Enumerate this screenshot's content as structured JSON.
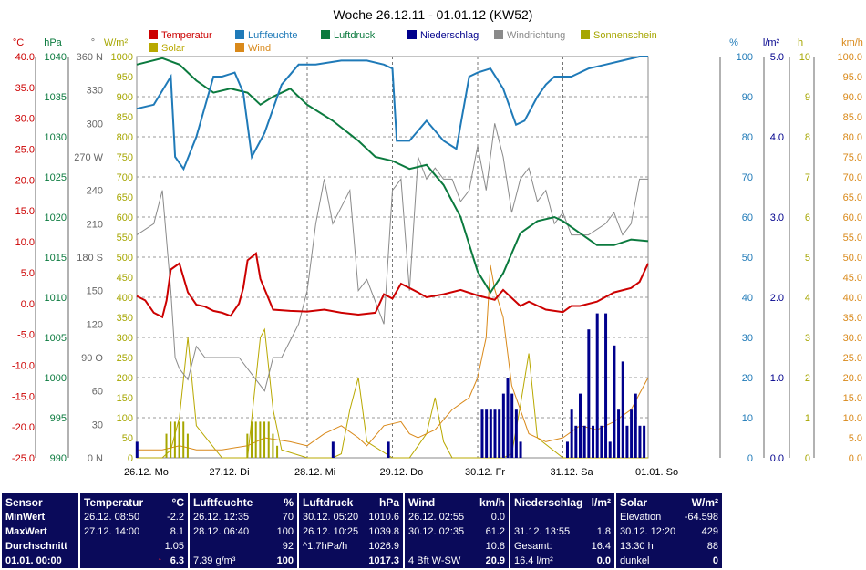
{
  "chart_data": {
    "type": "line",
    "title": "Woche 26.12.11 - 01.01.12 (KW52)",
    "legend": [
      {
        "name": "Temperatur",
        "color": "#cc0000"
      },
      {
        "name": "Luftfeuchte",
        "color": "#1f7ab8"
      },
      {
        "name": "Luftdruck",
        "color": "#0b7a3e"
      },
      {
        "name": "Niederschlag",
        "color": "#00008c"
      },
      {
        "name": "Windrichtung",
        "color": "#8a8a8a"
      },
      {
        "name": "Sonnenschein",
        "color": "#a6a600"
      },
      {
        "name": "Solar",
        "color": "#b8a800"
      },
      {
        "name": "Wind",
        "color": "#d9891a"
      }
    ],
    "x_labels": [
      "26.12. Mo",
      "27.12. Di",
      "28.12. Mi",
      "29.12. Do",
      "30.12. Fr",
      "31.12. Sa",
      "01.01. So"
    ],
    "axes": {
      "temperature": {
        "unit": "°C",
        "ticks": [
          "40.0",
          "35.0",
          "30.0",
          "25.0",
          "20.0",
          "15.0",
          "10.0",
          "5.0",
          "0.0",
          "-5.0",
          "-10.0",
          "-15.0",
          "-20.0",
          "-25.0"
        ],
        "range": [
          -25,
          40
        ],
        "color": "#cc0000"
      },
      "pressure": {
        "unit": "hPa",
        "ticks": [
          "1040",
          "1035",
          "1030",
          "1025",
          "1020",
          "1015",
          "1010",
          "1005",
          "1000",
          "995",
          "990"
        ],
        "range": [
          990,
          1040
        ],
        "color": "#0b7a3e"
      },
      "direction": {
        "unit": "°",
        "ticks": [
          "360 N",
          "330",
          "300",
          "270 W",
          "240",
          "210",
          "180 S",
          "150",
          "120",
          "90 O",
          "60",
          "30",
          "0 N"
        ],
        "range": [
          0,
          360
        ],
        "color": "#666666"
      },
      "solar": {
        "unit": "W/m²",
        "ticks": [
          "1000",
          "950",
          "900",
          "850",
          "800",
          "750",
          "700",
          "650",
          "600",
          "550",
          "500",
          "450",
          "400",
          "350",
          "300",
          "250",
          "200",
          "150",
          "100",
          "50",
          "0"
        ],
        "range": [
          0,
          1000
        ],
        "color": "#a6a600"
      },
      "humidity": {
        "unit": "%",
        "ticks": [
          "100",
          "90",
          "80",
          "70",
          "60",
          "50",
          "40",
          "30",
          "20",
          "10",
          "0"
        ],
        "range": [
          0,
          100
        ],
        "color": "#1f7ab8"
      },
      "rain": {
        "unit": "l/m²",
        "ticks": [
          "5.0",
          "4.0",
          "3.0",
          "2.0",
          "1.0",
          "0.0"
        ],
        "range": [
          0,
          5
        ],
        "color": "#00008c"
      },
      "sunshine": {
        "unit": "h",
        "ticks": [
          "10",
          "9",
          "8",
          "7",
          "6",
          "5",
          "4",
          "3",
          "2",
          "1",
          "0"
        ],
        "range": [
          0,
          10
        ],
        "color": "#a6a600"
      },
      "wind": {
        "unit": "km/h",
        "ticks": [
          "100.0",
          "95.0",
          "90.0",
          "85.0",
          "80.0",
          "75.0",
          "70.0",
          "65.0",
          "60.0",
          "55.0",
          "50.0",
          "45.0",
          "40.0",
          "35.0",
          "30.0",
          "25.0",
          "20.0",
          "15.0",
          "10.0",
          "5.0",
          "0.0"
        ],
        "range": [
          0,
          100
        ],
        "color": "#d9891a"
      }
    },
    "series": [
      {
        "name": "Temperatur",
        "unit": "°C",
        "x": [
          0,
          0.1,
          0.2,
          0.3,
          0.35,
          0.4,
          0.5,
          0.6,
          0.7,
          0.8,
          0.9,
          1.0,
          1.1,
          1.2,
          1.25,
          1.3,
          1.4,
          1.45,
          1.6,
          1.8,
          2.0,
          2.2,
          2.4,
          2.6,
          2.8,
          2.9,
          3.0,
          3.1,
          3.2,
          3.3,
          3.4,
          3.6,
          3.8,
          4.0,
          4.2,
          4.3,
          4.5,
          4.6,
          4.8,
          5.0,
          5.1,
          5.2,
          5.4,
          5.6,
          5.8,
          5.9,
          6.0
        ],
        "y": [
          1.2,
          0.5,
          -1.5,
          -2.2,
          0.5,
          5.5,
          6.5,
          1.8,
          -0.2,
          -0.5,
          -1.2,
          -1.5,
          -2.0,
          0,
          2.5,
          7.0,
          8.1,
          4.0,
          -1.0,
          -1.2,
          -1.3,
          -1.0,
          -1.5,
          -1.8,
          -1.5,
          1.5,
          0.8,
          3.2,
          2.5,
          1.8,
          1.0,
          1.5,
          2.2,
          1.3,
          0.6,
          2.2,
          -0.4,
          0.3,
          -1.0,
          -1.4,
          -0.4,
          -0.4,
          0.3,
          1.8,
          2.5,
          3.5,
          6.5
        ]
      },
      {
        "name": "Luftfeuchte",
        "unit": "%",
        "x": [
          0,
          0.2,
          0.4,
          0.45,
          0.55,
          0.7,
          0.9,
          1.0,
          1.15,
          1.25,
          1.35,
          1.5,
          1.7,
          1.9,
          2.1,
          2.4,
          2.7,
          2.9,
          3.0,
          3.05,
          3.2,
          3.4,
          3.6,
          3.75,
          3.9,
          4.0,
          4.15,
          4.3,
          4.45,
          4.55,
          4.7,
          4.8,
          4.9,
          5.1,
          5.3,
          5.5,
          5.7,
          5.9,
          6.0
        ],
        "y": [
          87,
          88,
          95,
          75,
          72,
          80,
          95,
          95,
          96,
          91,
          75,
          81,
          93,
          98,
          98,
          99,
          99,
          98,
          97,
          79,
          79,
          84,
          79,
          77,
          95,
          96,
          97,
          92,
          83,
          84,
          90,
          93,
          95,
          95,
          97,
          98,
          99,
          100,
          100
        ]
      },
      {
        "name": "Luftdruck",
        "unit": "hPa",
        "x": [
          0,
          0.3,
          0.5,
          0.7,
          0.9,
          1.1,
          1.3,
          1.45,
          1.6,
          1.8,
          2.0,
          2.3,
          2.6,
          2.8,
          3.0,
          3.2,
          3.4,
          3.6,
          3.8,
          4.0,
          4.15,
          4.3,
          4.5,
          4.7,
          4.9,
          5.0,
          5.2,
          5.4,
          5.6,
          5.8,
          6.0
        ],
        "y": [
          1039,
          1039.8,
          1039,
          1037,
          1035.5,
          1036,
          1035.5,
          1034,
          1035,
          1036,
          1034,
          1032,
          1029.5,
          1027.5,
          1027,
          1026,
          1026.5,
          1024,
          1020,
          1013.2,
          1010.6,
          1013,
          1018,
          1019.5,
          1020,
          1019.5,
          1018,
          1016.5,
          1016.5,
          1017.2,
          1017
        ]
      },
      {
        "name": "Windrichtung",
        "unit": "°",
        "x": [
          0,
          0.2,
          0.3,
          0.4,
          0.45,
          0.5,
          0.6,
          0.7,
          0.8,
          1.0,
          1.2,
          1.5,
          1.6,
          1.7,
          1.9,
          2.0,
          2.1,
          2.2,
          2.3,
          2.5,
          2.6,
          2.7,
          2.9,
          3.0,
          3.1,
          3.2,
          3.3,
          3.4,
          3.5,
          3.6,
          3.7,
          3.8,
          3.9,
          4.0,
          4.1,
          4.2,
          4.3,
          4.4,
          4.5,
          4.6,
          4.7,
          4.8,
          4.9,
          5.0,
          5.1,
          5.2,
          5.3,
          5.5,
          5.6,
          5.7,
          5.8,
          5.9,
          6.0
        ],
        "y": [
          200,
          210,
          240,
          150,
          90,
          80,
          70,
          100,
          90,
          90,
          90,
          60,
          90,
          90,
          120,
          150,
          210,
          250,
          210,
          240,
          150,
          160,
          120,
          240,
          250,
          150,
          270,
          250,
          260,
          250,
          250,
          230,
          240,
          280,
          240,
          300,
          270,
          220,
          250,
          260,
          230,
          240,
          210,
          220,
          200,
          200,
          200,
          210,
          220,
          200,
          210,
          250,
          250
        ]
      },
      {
        "name": "Solar",
        "unit": "W/m²",
        "x": [
          0,
          0.3,
          0.4,
          0.5,
          0.6,
          0.7,
          1.0,
          1.3,
          1.4,
          1.45,
          1.5,
          1.6,
          1.7,
          2.0,
          2.3,
          2.4,
          2.5,
          2.6,
          2.7,
          3.0,
          3.2,
          3.3,
          3.4,
          3.5,
          3.6,
          3.7,
          4.0,
          4.3,
          4.4,
          4.5,
          4.6,
          4.7,
          5.0,
          5.3,
          5.5,
          6.0
        ],
        "y": [
          0,
          0,
          20,
          100,
          300,
          80,
          0,
          0,
          200,
          300,
          320,
          120,
          20,
          0,
          0,
          10,
          120,
          200,
          40,
          0,
          0,
          30,
          60,
          150,
          40,
          0,
          0,
          0,
          10,
          130,
          260,
          50,
          0,
          0,
          0,
          0
        ]
      },
      {
        "name": "Wind",
        "unit": "km/h",
        "x": [
          0,
          0.3,
          0.5,
          0.7,
          1.0,
          1.3,
          1.5,
          1.8,
          2.0,
          2.2,
          2.4,
          2.6,
          2.7,
          2.9,
          3.1,
          3.2,
          3.3,
          3.5,
          3.7,
          3.9,
          4.0,
          4.1,
          4.15,
          4.2,
          4.3,
          4.4,
          4.5,
          4.6,
          4.8,
          5.0,
          5.2,
          5.4,
          5.6,
          5.8,
          5.9,
          6.0
        ],
        "y": [
          2,
          2,
          3,
          2,
          2,
          3,
          5,
          4,
          3,
          6,
          8,
          5,
          3,
          8,
          9,
          6,
          5,
          7,
          12,
          15,
          20,
          30,
          48,
          42,
          35,
          18,
          12,
          6,
          4,
          5,
          8,
          7,
          9,
          12,
          16,
          20
        ]
      },
      {
        "name": "Sonnenschein",
        "unit": "h",
        "x": [
          0.35,
          0.4,
          0.45,
          0.5,
          0.55,
          0.6,
          1.3,
          1.35,
          1.4,
          1.45,
          1.5,
          1.55,
          1.6,
          1.65
        ],
        "y": [
          0.6,
          0.9,
          0.9,
          0.9,
          0.9,
          0.6,
          0.6,
          0.9,
          0.9,
          0.9,
          0.9,
          0.9,
          0.6,
          0.3
        ]
      },
      {
        "name": "Niederschlag",
        "unit": "l/m²",
        "x": [
          0,
          2.3,
          2.95,
          4.05,
          4.1,
          4.15,
          4.2,
          4.25,
          4.3,
          4.35,
          4.4,
          4.45,
          4.5,
          5.05,
          5.1,
          5.15,
          5.2,
          5.25,
          5.3,
          5.35,
          5.4,
          5.45,
          5.5,
          5.55,
          5.6,
          5.65,
          5.7,
          5.75,
          5.8,
          5.85,
          5.9,
          5.95
        ],
        "y": [
          0.2,
          0.2,
          0.2,
          0.6,
          0.6,
          0.6,
          0.6,
          0.6,
          0.8,
          1.0,
          0.8,
          0.6,
          0.2,
          0.2,
          0.6,
          0.4,
          0.8,
          0.4,
          1.6,
          0.4,
          1.8,
          0.4,
          1.8,
          0.2,
          1.4,
          0.6,
          1.2,
          0.4,
          0.6,
          0.8,
          0.4,
          0.4
        ]
      }
    ]
  },
  "table": [
    {
      "col": "Sensor",
      "rows": [
        "MinWert",
        "MaxWert",
        "Durchschnitt",
        "01.01. 00:00"
      ]
    },
    {
      "col": "Temperatur",
      "unit": "°C",
      "rows": [
        [
          "26.12.  08:50",
          "-2.2"
        ],
        [
          "27.12.  14:00",
          "8.1"
        ],
        [
          "",
          "1.05"
        ],
        [
          "",
          "6.3"
        ]
      ],
      "trend": "↑"
    },
    {
      "col": "Luftfeuchte",
      "unit": "%",
      "rows": [
        [
          "26.12.  12:35",
          "70"
        ],
        [
          "28.12.  06:40",
          "100"
        ],
        [
          "",
          "92"
        ],
        [
          "7.39 g/m³",
          "100"
        ]
      ]
    },
    {
      "col": "Luftdruck",
      "unit": "hPa",
      "rows": [
        [
          "30.12.  05:20",
          "1010.6"
        ],
        [
          "26.12.  10:25",
          "1039.8"
        ],
        [
          "^1.7hPa/h",
          "1026.9"
        ],
        [
          "",
          "1017.3"
        ]
      ]
    },
    {
      "col": "Wind",
      "unit": "km/h",
      "rows": [
        [
          "26.12.  02:55",
          "0.0"
        ],
        [
          "30.12.  02:35",
          "61.2"
        ],
        [
          "",
          "10.8"
        ],
        [
          "4 Bft W-SW",
          "20.9"
        ]
      ]
    },
    {
      "col": "Niederschlag",
      "unit": "l/m²",
      "rows": [
        [
          "",
          ""
        ],
        [
          "31.12.  13:55",
          "1.8"
        ],
        [
          "Gesamt:",
          "16.4"
        ],
        [
          "16.4 l/m²",
          "0.0"
        ]
      ]
    },
    {
      "col": "Solar",
      "unit": "W/m²",
      "rows": [
        [
          "Elevation",
          "-64.598"
        ],
        [
          "30.12.  12:20",
          "429"
        ],
        [
          "13:30 h",
          "88"
        ],
        [
          "dunkel",
          "0"
        ]
      ]
    }
  ]
}
